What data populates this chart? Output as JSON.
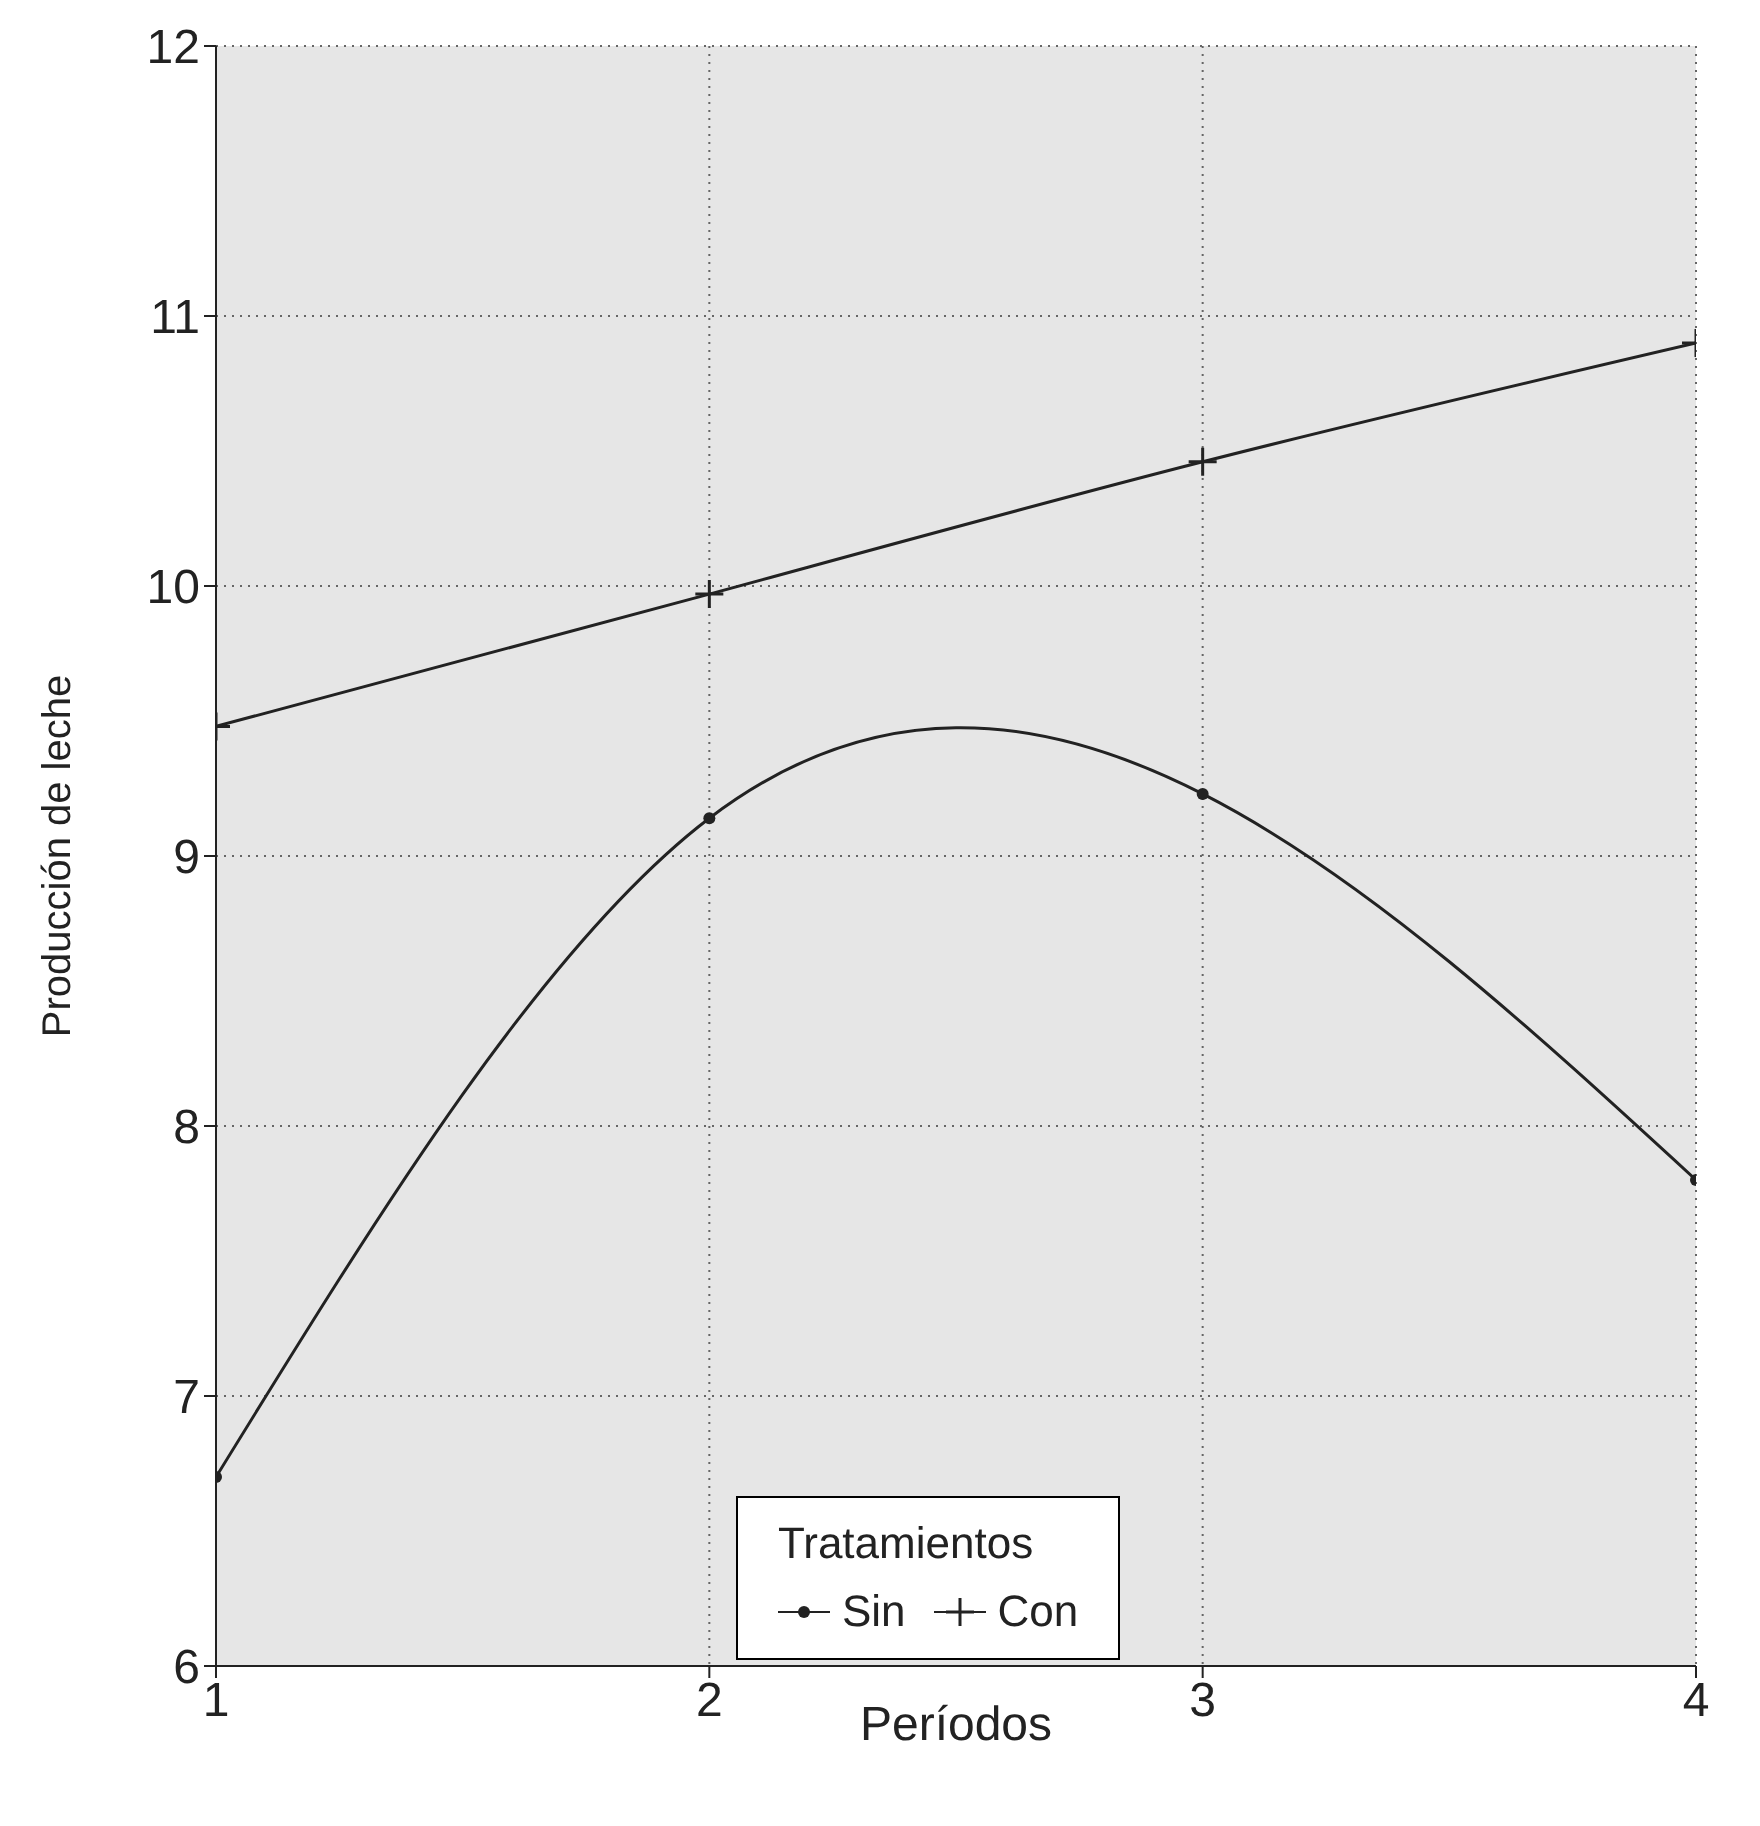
{
  "chart_data": {
    "type": "line",
    "xlabel": "Períodos",
    "ylabel": "Producción de leche",
    "legend_title": "Tratamientos",
    "x": [
      1,
      2,
      3,
      4
    ],
    "series": [
      {
        "name": "Sin",
        "color": "#222222",
        "values": [
          6.7,
          9.14,
          9.23,
          7.8
        ],
        "marker": "circle"
      },
      {
        "name": "Con",
        "color": "#222222",
        "values": [
          9.48,
          9.97,
          10.46,
          10.9
        ],
        "marker": "cross"
      }
    ],
    "xlim": [
      1,
      4
    ],
    "xticks": [
      1,
      2,
      3,
      4
    ],
    "ylim": [
      6,
      12
    ],
    "yticks": [
      6,
      7,
      8,
      9,
      10,
      11,
      12
    ],
    "grid": true,
    "legend": "bottom"
  }
}
